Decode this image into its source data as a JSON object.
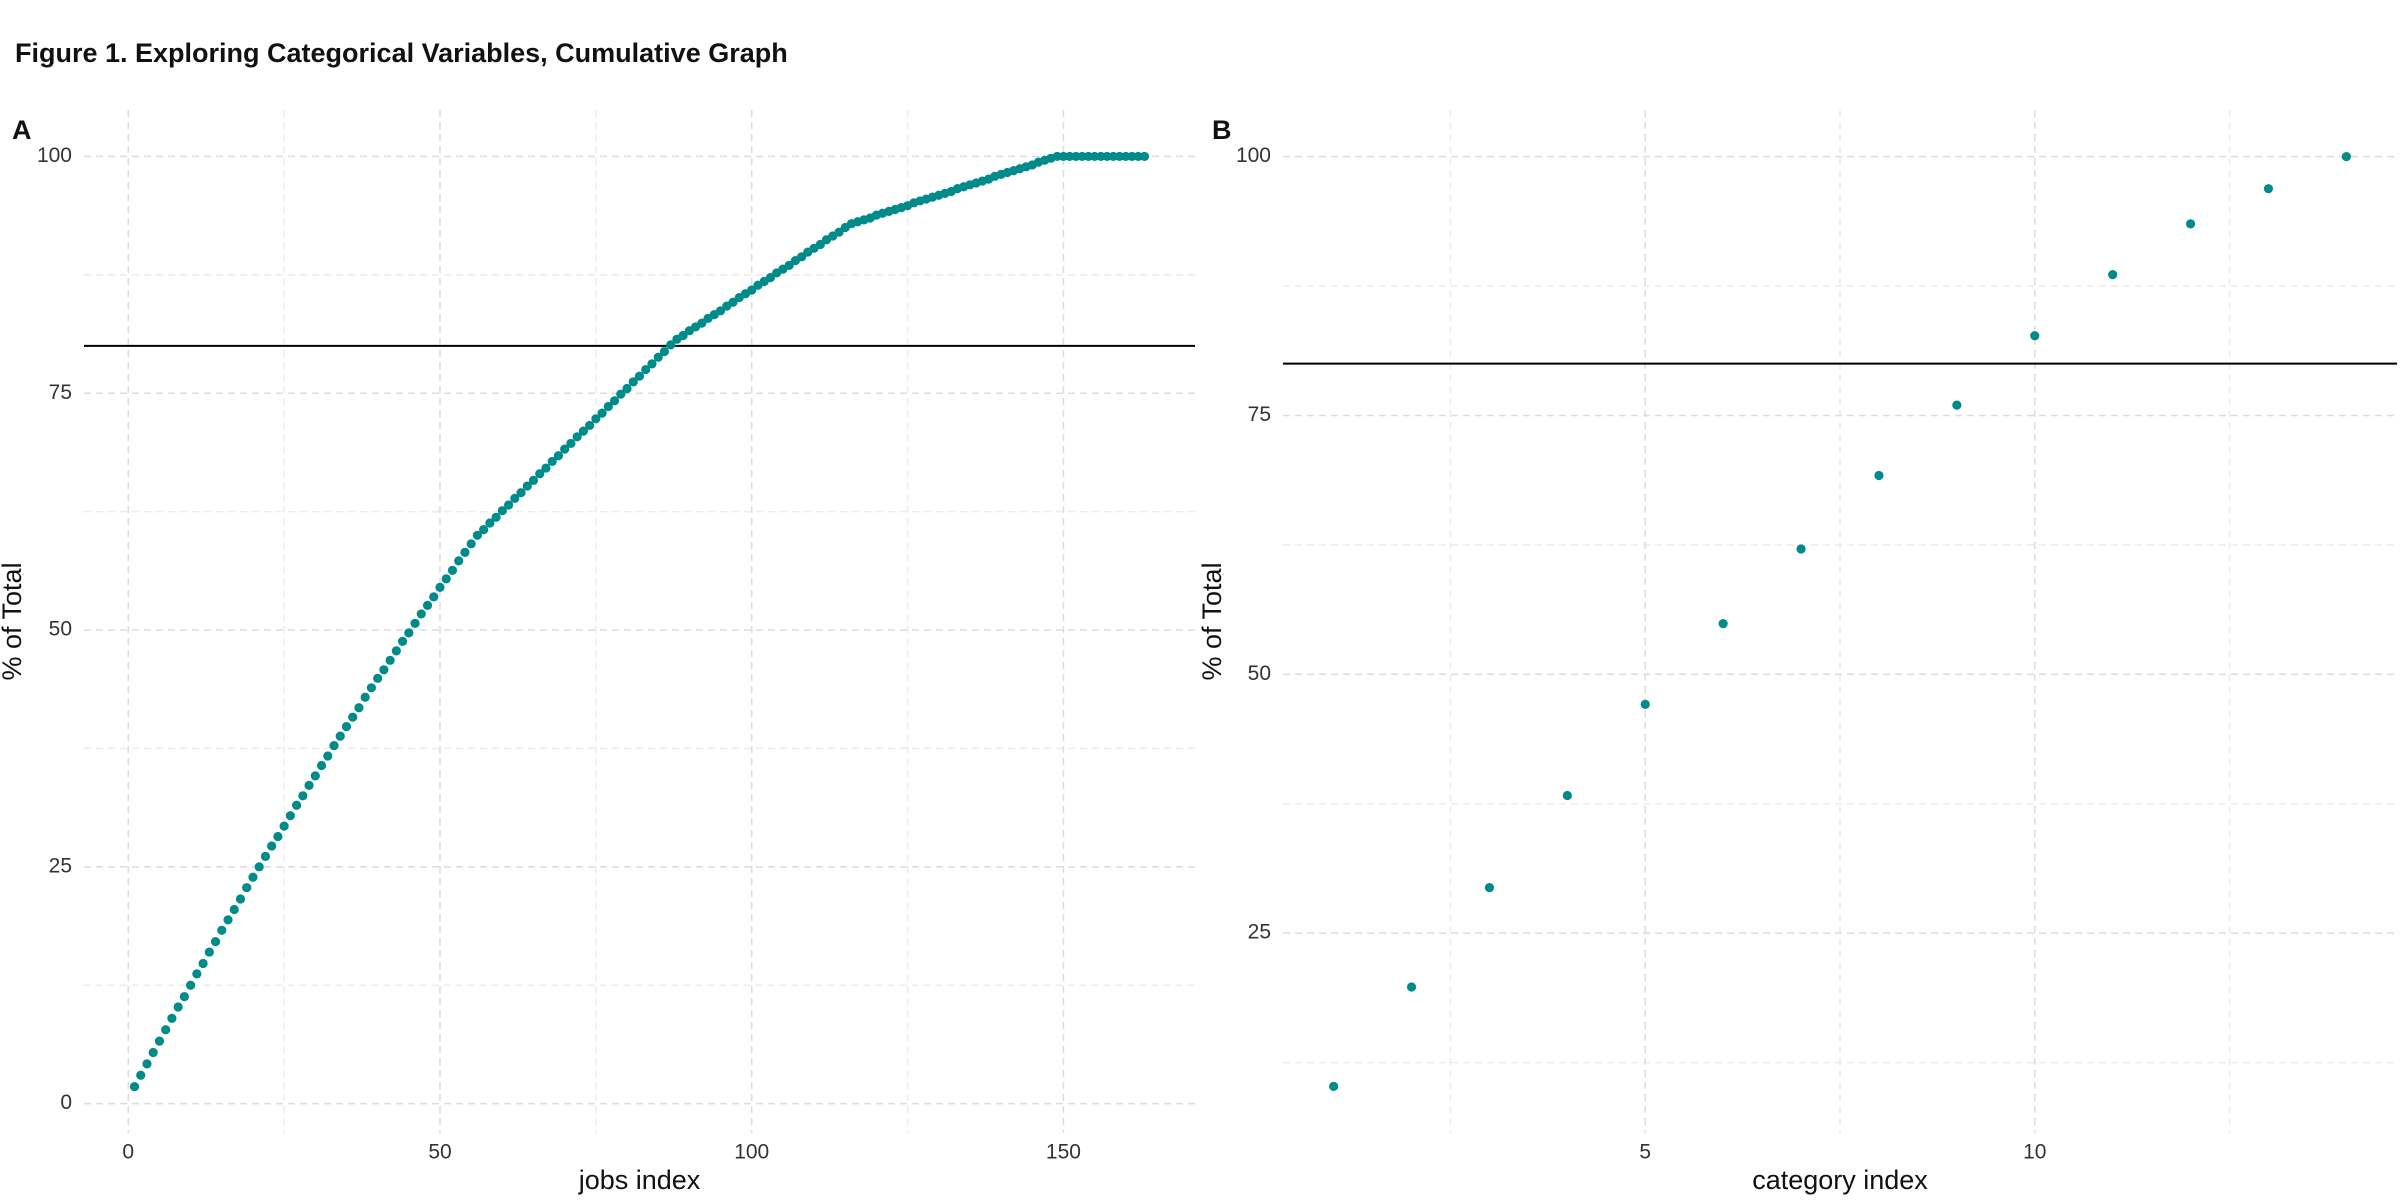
{
  "title": "Figure 1. Exploring Categorical Variables, Cumulative Graph",
  "chart_data": [
    {
      "type": "scatter",
      "panel_label": "A",
      "xlabel": "jobs index",
      "ylabel": "% of Total",
      "color": "#008b8b",
      "grid": true,
      "hline": 80,
      "xlim": [
        -7.1,
        171.1
      ],
      "ylim": [
        -3.1,
        104.9
      ],
      "xticks": [
        0,
        50,
        100,
        150
      ],
      "yticks": [
        0,
        25,
        50,
        75,
        100
      ],
      "x": [
        1,
        2,
        3,
        4,
        5,
        6,
        7,
        8,
        9,
        10,
        11,
        12,
        13,
        14,
        15,
        16,
        17,
        18,
        19,
        20,
        21,
        22,
        23,
        24,
        25,
        26,
        27,
        28,
        29,
        30,
        31,
        32,
        33,
        34,
        35,
        36,
        37,
        38,
        39,
        40,
        41,
        42,
        43,
        44,
        45,
        46,
        47,
        48,
        49,
        50,
        51,
        52,
        53,
        54,
        55,
        56,
        57,
        58,
        59,
        60,
        61,
        62,
        63,
        64,
        65,
        66,
        67,
        68,
        69,
        70,
        71,
        72,
        73,
        74,
        75,
        76,
        77,
        78,
        79,
        80,
        81,
        82,
        83,
        84,
        85,
        86,
        87,
        88,
        89,
        90,
        91,
        92,
        93,
        94,
        95,
        96,
        97,
        98,
        99,
        100,
        101,
        102,
        103,
        104,
        105,
        106,
        107,
        108,
        109,
        110,
        111,
        112,
        113,
        114,
        115,
        116,
        117,
        118,
        119,
        120,
        121,
        122,
        123,
        124,
        125,
        126,
        127,
        128,
        129,
        130,
        131,
        132,
        133,
        134,
        135,
        136,
        137,
        138,
        139,
        140,
        141,
        142,
        143,
        144,
        145,
        146,
        147,
        148,
        149,
        150,
        151,
        152,
        153,
        154,
        155,
        156,
        157,
        158,
        159,
        160,
        161,
        162,
        163
      ],
      "values": [
        1.8,
        3.0,
        4.2,
        5.4,
        6.6,
        7.8,
        9.0,
        10.2,
        11.3,
        12.5,
        13.7,
        14.8,
        16.0,
        17.1,
        18.3,
        19.4,
        20.5,
        21.6,
        22.8,
        23.9,
        25.0,
        26.1,
        27.2,
        28.2,
        29.3,
        30.4,
        31.5,
        32.5,
        33.6,
        34.6,
        35.7,
        36.7,
        37.8,
        38.8,
        39.8,
        40.8,
        41.8,
        42.9,
        43.9,
        44.9,
        45.8,
        46.8,
        47.8,
        48.8,
        49.7,
        50.7,
        51.7,
        52.6,
        53.5,
        54.5,
        55.4,
        56.3,
        57.3,
        58.2,
        59.1,
        60.0,
        60.6,
        61.3,
        61.9,
        62.6,
        63.2,
        63.9,
        64.5,
        65.2,
        65.8,
        66.5,
        67.1,
        67.8,
        68.4,
        69.1,
        69.7,
        70.4,
        71.0,
        71.6,
        72.3,
        72.9,
        73.6,
        74.2,
        74.9,
        75.5,
        76.2,
        76.8,
        77.5,
        78.1,
        78.8,
        79.4,
        80.1,
        80.7,
        81.1,
        81.6,
        82.0,
        82.4,
        82.9,
        83.3,
        83.7,
        84.2,
        84.6,
        85.1,
        85.5,
        85.9,
        86.4,
        86.8,
        87.2,
        87.7,
        88.1,
        88.5,
        89.0,
        89.4,
        89.9,
        90.3,
        90.7,
        91.2,
        91.6,
        92.0,
        92.5,
        92.9,
        93.1,
        93.3,
        93.5,
        93.8,
        94.0,
        94.2,
        94.4,
        94.6,
        94.8,
        95.1,
        95.3,
        95.5,
        95.7,
        95.9,
        96.1,
        96.3,
        96.6,
        96.8,
        97.0,
        97.2,
        97.4,
        97.6,
        97.9,
        98.1,
        98.3,
        98.5,
        98.7,
        98.9,
        99.1,
        99.4,
        99.6,
        99.8,
        100,
        100,
        100,
        100,
        100,
        100,
        100,
        100,
        100,
        100,
        100,
        100,
        100,
        100,
        100
      ]
    },
    {
      "type": "scatter",
      "panel_label": "B",
      "xlabel": "category index",
      "ylabel": "% of Total",
      "color": "#008b8b",
      "grid": true,
      "hline": 80,
      "xlim": [
        0.35,
        14.65
      ],
      "ylim": [
        5.7,
        104.5
      ],
      "xticks": [
        5,
        10
      ],
      "yticks": [
        25,
        50,
        75,
        100
      ],
      "x": [
        1,
        2,
        3,
        4,
        5,
        6,
        7,
        8,
        9,
        10,
        11,
        12,
        13,
        14
      ],
      "values": [
        10.2,
        19.8,
        29.4,
        38.3,
        47.1,
        54.9,
        62.1,
        69.2,
        76.0,
        82.7,
        88.6,
        93.5,
        96.9,
        100.0
      ]
    }
  ]
}
